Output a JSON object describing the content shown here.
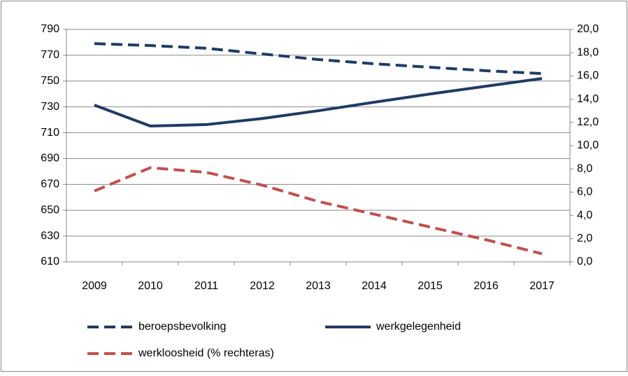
{
  "chart_data": {
    "type": "line",
    "categories": [
      "2009",
      "2010",
      "2011",
      "2012",
      "2013",
      "2014",
      "2015",
      "2016",
      "2017"
    ],
    "series": [
      {
        "name": "beroepsbevolking",
        "color": "#1f3b66",
        "dash": true,
        "values": [
          779,
          777.5,
          775.4,
          771,
          766.7,
          763.4,
          760.7,
          758,
          755.8
        ]
      },
      {
        "name": "werkgelegenheid",
        "color": "#1f3b66",
        "dash": false,
        "values": [
          731.4,
          715.2,
          716.3,
          721,
          727,
          733.6,
          740,
          746,
          752
        ]
      },
      {
        "name": "werkloosheid (% rechteras)",
        "color": "#c0504d",
        "dash": true,
        "axis": "y2",
        "values": [
          6.1,
          8.1,
          7.7,
          6.6,
          5.2,
          4.1,
          3.0,
          1.9,
          0.7
        ]
      }
    ],
    "ylim": [
      610,
      790
    ],
    "yticks": [
      610,
      630,
      650,
      670,
      690,
      710,
      730,
      750,
      770,
      790
    ],
    "y2lim": [
      0,
      20
    ],
    "y2ticks": [
      {
        "value": 0,
        "label": "0,0"
      },
      {
        "value": 2,
        "label": "2,0"
      },
      {
        "value": 4,
        "label": "4,0"
      },
      {
        "value": 6,
        "label": "6,0"
      },
      {
        "value": 8,
        "label": "8,0"
      },
      {
        "value": 10,
        "label": "10,0"
      },
      {
        "value": 12,
        "label": "12,0"
      },
      {
        "value": 14,
        "label": "14,0"
      },
      {
        "value": 16,
        "label": "16,0"
      },
      {
        "value": 18,
        "label": "18,0"
      },
      {
        "value": 20,
        "label": "20,0"
      }
    ],
    "grid": true,
    "legend": "bottom"
  }
}
